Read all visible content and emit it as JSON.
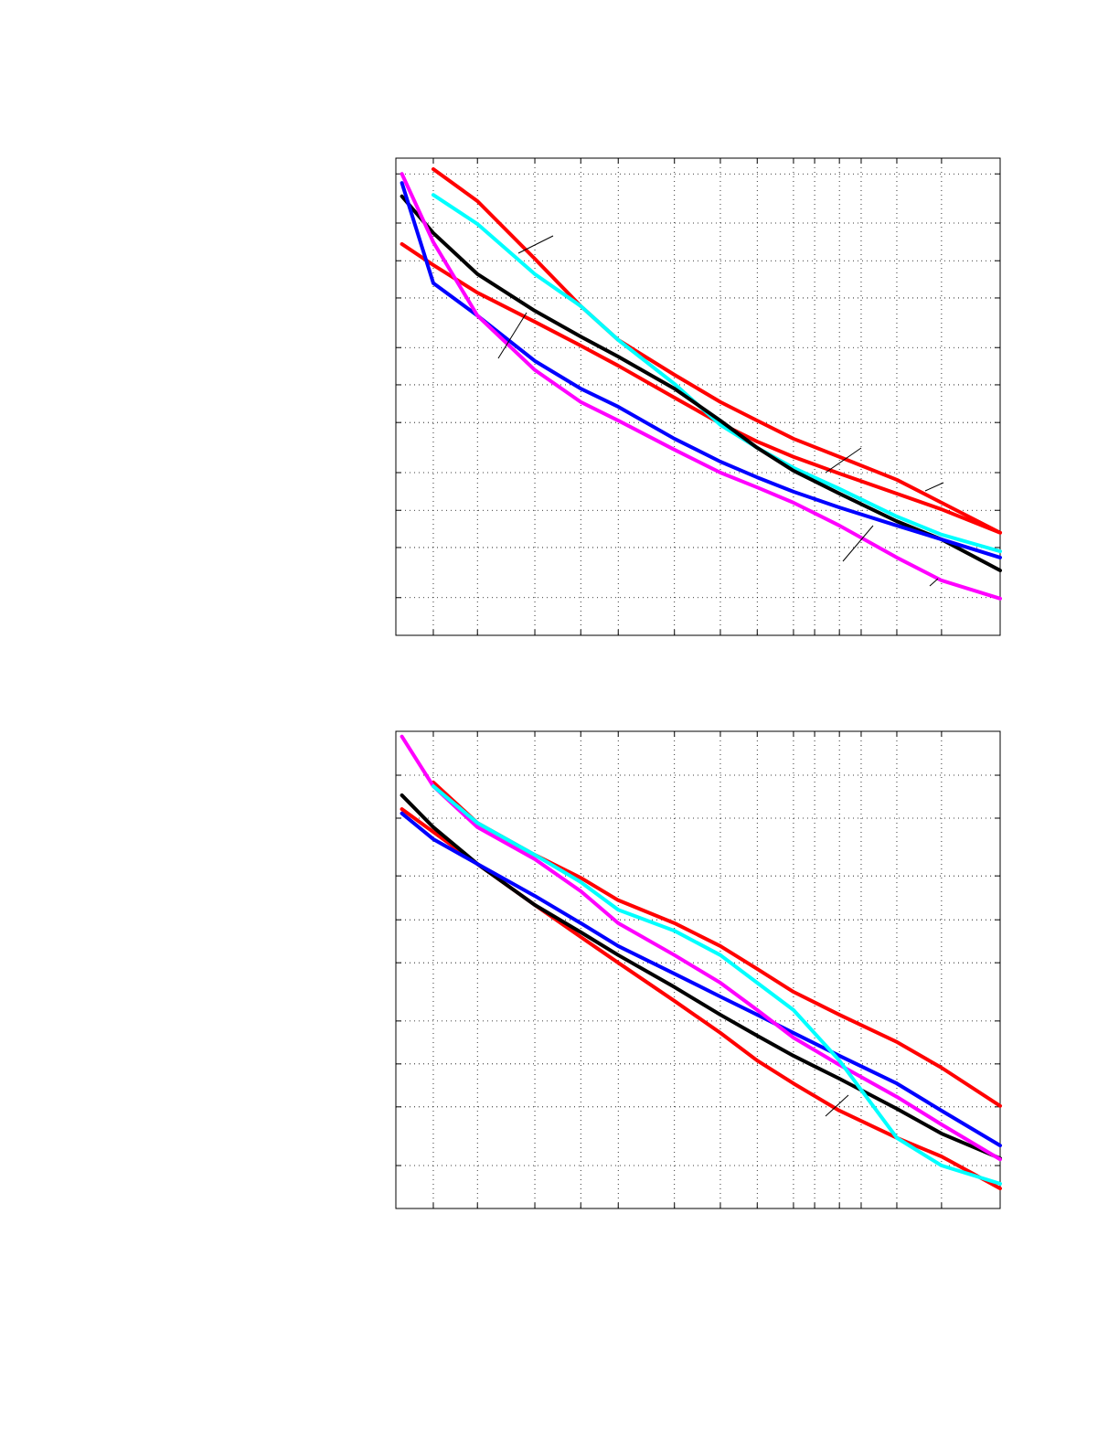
{
  "chart_data": [
    {
      "type": "line",
      "x": [
        1,
        6.2,
        13.5,
        23,
        30.6,
        36.8,
        46.1,
        53.7,
        59.8,
        65.8,
        73.4,
        82.9,
        90.3,
        100
      ],
      "xlim": [
        0,
        100
      ],
      "ylim": [
        0,
        100
      ],
      "xticks": [
        6.2,
        13.5,
        23,
        30.6,
        36.8,
        46.1,
        53.7,
        59.8,
        65.8,
        69.3,
        73.4,
        77,
        82.9,
        90.3
      ],
      "yticks": [
        7.9,
        18.4,
        26.2,
        34.1,
        44.6,
        52.5,
        60.3,
        70.7,
        78.5,
        86.4,
        96.7
      ],
      "grid": true,
      "series": [
        {
          "color": "#ff0000",
          "values": [
            null,
            97.7,
            91.0,
            78.9,
            69.0,
            61.9,
            54.6,
            48.9,
            45.0,
            41.2,
            37.4,
            32.6,
            27.8,
            21.5
          ]
        },
        {
          "color": "#ff0000",
          "values": [
            82.0,
            77.6,
            71.8,
            65.7,
            60.7,
            56.5,
            49.8,
            44.4,
            40.6,
            37.4,
            33.9,
            29.7,
            26.4,
            21.5
          ]
        },
        {
          "color": "#00ffff",
          "values": [
            null,
            92.3,
            86.2,
            75.7,
            69.0,
            61.9,
            52.7,
            44.1,
            39.3,
            35.1,
            30.7,
            24.9,
            21.1,
            17.6
          ]
        },
        {
          "color": "#000000",
          "values": [
            92.0,
            84.3,
            75.7,
            68.0,
            62.6,
            58.4,
            51.7,
            45.0,
            39.3,
            34.5,
            29.7,
            23.9,
            20.1,
            13.6
          ]
        },
        {
          "color": "#0000ff",
          "values": [
            94.8,
            73.8,
            67.0,
            57.5,
            51.7,
            47.9,
            41.2,
            36.4,
            33.1,
            30.1,
            26.8,
            23.0,
            20.1,
            16.3
          ]
        },
        {
          "color": "#ff00ff",
          "values": [
            96.7,
            82.4,
            67.0,
            55.6,
            48.9,
            45.0,
            38.9,
            34.1,
            31.0,
            27.8,
            23.0,
            16.3,
            11.5,
            7.7
          ]
        }
      ]
    },
    {
      "type": "line",
      "x": [
        1,
        6.2,
        13.5,
        23,
        30.6,
        36.8,
        46.1,
        53.7,
        59.8,
        65.8,
        73.4,
        82.9,
        90.3,
        100
      ],
      "xlim": [
        0,
        100
      ],
      "ylim": [
        0,
        100
      ],
      "xticks": [
        6.2,
        13.5,
        23,
        30.6,
        36.8,
        46.1,
        53.7,
        59.8,
        65.8,
        69.3,
        73.4,
        77,
        82.9,
        90.3
      ],
      "yticks": [
        9.0,
        21.3,
        30.3,
        39.3,
        51.5,
        60.5,
        69.7,
        81.8,
        90.8
      ],
      "grid": true,
      "series": [
        {
          "color": "#ff0000",
          "values": [
            null,
            89.3,
            80.8,
            74.1,
            69.3,
            64.6,
            59.8,
            55.0,
            50.2,
            45.4,
            40.6,
            34.9,
            29.5,
            21.5
          ]
        },
        {
          "color": "#ff0000",
          "values": [
            83.7,
            78.9,
            72.2,
            63.6,
            56.9,
            51.5,
            43.5,
            36.8,
            31.0,
            26.2,
            20.5,
            14.8,
            10.9,
            4.2
          ]
        },
        {
          "color": "#000000",
          "values": [
            86.6,
            79.9,
            72.2,
            63.6,
            57.9,
            53.1,
            46.4,
            40.6,
            36.2,
            32.0,
            27.2,
            20.9,
            15.7,
            10.5
          ]
        },
        {
          "color": "#0000ff",
          "values": [
            82.8,
            77.4,
            72.2,
            65.5,
            59.8,
            55.0,
            49.2,
            44.4,
            40.6,
            36.8,
            32.0,
            26.2,
            20.5,
            13.2
          ]
        },
        {
          "color": "#ff00ff",
          "values": [
            98.9,
            88.5,
            79.9,
            73.2,
            66.5,
            59.8,
            53.1,
            47.3,
            41.6,
            35.8,
            30.1,
            23.4,
            17.6,
            10.3
          ]
        },
        {
          "color": "#00ffff",
          "values": [
            null,
            88.5,
            80.8,
            74.1,
            68.4,
            62.6,
            58.2,
            53.1,
            47.3,
            41.6,
            31.0,
            14.8,
            9.0,
            5.2
          ]
        }
      ]
    }
  ]
}
